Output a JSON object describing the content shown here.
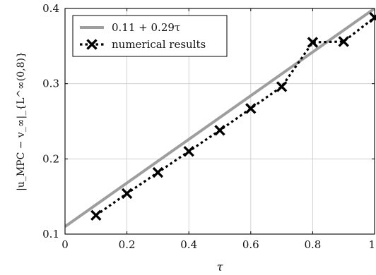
{
  "chart_data": {
    "type": "line",
    "title": "",
    "xlabel": "τ",
    "ylabel": "|u_MPC − v_∞|_{L^∞(0,8)}",
    "xlim": [
      0,
      1
    ],
    "ylim": [
      0.1,
      0.4
    ],
    "xticks": [
      0,
      0.2,
      0.4,
      0.6,
      0.8,
      1
    ],
    "yticks": [
      0.1,
      0.2,
      0.3,
      0.4
    ],
    "xtick_labels": [
      "0",
      "0.2",
      "0.4",
      "0.6",
      "0.8",
      "1"
    ],
    "ytick_labels": [
      "0.1",
      "0.2",
      "0.3",
      "0.4"
    ],
    "grid": true,
    "legend_position": "top-left",
    "series": [
      {
        "name": "0.11 + 0.29τ",
        "style": "solid",
        "color": "#9e9e9e",
        "marker": "none",
        "x": [
          0,
          1
        ],
        "y": [
          0.11,
          0.4
        ]
      },
      {
        "name": "numerical results",
        "style": "dotted",
        "color": "#000000",
        "marker": "x",
        "x": [
          0.1,
          0.2,
          0.3,
          0.4,
          0.5,
          0.6,
          0.7,
          0.8,
          0.9,
          1.0
        ],
        "y": [
          0.125,
          0.154,
          0.182,
          0.21,
          0.238,
          0.267,
          0.296,
          0.355,
          0.356,
          0.388
        ]
      }
    ]
  }
}
